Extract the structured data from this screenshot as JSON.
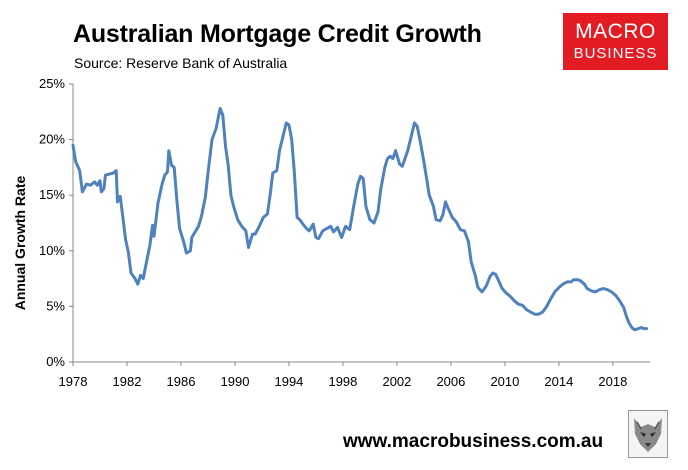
{
  "header": {
    "title": "Australian Mortgage Credit Growth",
    "subtitle": "Source: Reserve Bank of Australia"
  },
  "logo": {
    "line1": "MACRO",
    "line2": "BUSINESS",
    "color": "#e31b23"
  },
  "footer": {
    "website": "www.macrobusiness.com.au"
  },
  "chart_data": {
    "type": "line",
    "ylabel": "Annual Growth Rate",
    "xlabel": "",
    "xlim": [
      1978,
      2020.75
    ],
    "ylim": [
      0,
      25
    ],
    "grid": false,
    "legend": "none",
    "x_ticks": [
      "1978",
      "1982",
      "1986",
      "1990",
      "1994",
      "1998",
      "2002",
      "2006",
      "2010",
      "2014",
      "2018"
    ],
    "y_ticks": [
      "0%",
      "5%",
      "10%",
      "15%",
      "20%",
      "25%"
    ],
    "series": [
      {
        "color": "#4f81bd",
        "points": [
          [
            1978.0,
            19.5
          ],
          [
            1978.2,
            18.0
          ],
          [
            1978.5,
            17.2
          ],
          [
            1978.7,
            15.3
          ],
          [
            1979.0,
            16.0
          ],
          [
            1979.3,
            15.9
          ],
          [
            1979.6,
            16.2
          ],
          [
            1979.8,
            15.9
          ],
          [
            1980.0,
            16.3
          ],
          [
            1980.1,
            15.3
          ],
          [
            1980.3,
            15.6
          ],
          [
            1980.4,
            16.8
          ],
          [
            1980.7,
            16.9
          ],
          [
            1981.0,
            17.0
          ],
          [
            1981.2,
            17.2
          ],
          [
            1981.3,
            14.4
          ],
          [
            1981.5,
            14.9
          ],
          [
            1981.7,
            13.0
          ],
          [
            1981.9,
            11.0
          ],
          [
            1982.1,
            9.9
          ],
          [
            1982.3,
            8.0
          ],
          [
            1982.6,
            7.5
          ],
          [
            1982.8,
            7.0
          ],
          [
            1983.0,
            7.8
          ],
          [
            1983.2,
            7.5
          ],
          [
            1983.5,
            9.3
          ],
          [
            1983.7,
            10.5
          ],
          [
            1983.9,
            12.3
          ],
          [
            1984.0,
            11.3
          ],
          [
            1984.3,
            14.3
          ],
          [
            1984.6,
            16.0
          ],
          [
            1984.8,
            16.8
          ],
          [
            1985.0,
            17.1
          ],
          [
            1985.1,
            19.0
          ],
          [
            1985.3,
            17.7
          ],
          [
            1985.5,
            17.5
          ],
          [
            1985.7,
            14.5
          ],
          [
            1985.9,
            12.0
          ],
          [
            1986.2,
            10.8
          ],
          [
            1986.4,
            9.8
          ],
          [
            1986.7,
            10.0
          ],
          [
            1986.8,
            11.2
          ],
          [
            1987.1,
            11.8
          ],
          [
            1987.3,
            12.2
          ],
          [
            1987.5,
            13.0
          ],
          [
            1987.8,
            14.8
          ],
          [
            1988.0,
            17.0
          ],
          [
            1988.3,
            20.0
          ],
          [
            1988.6,
            21.0
          ],
          [
            1988.9,
            22.8
          ],
          [
            1989.1,
            22.2
          ],
          [
            1989.3,
            19.4
          ],
          [
            1989.5,
            17.7
          ],
          [
            1989.7,
            15.0
          ],
          [
            1989.9,
            14.0
          ],
          [
            1990.2,
            12.8
          ],
          [
            1990.5,
            12.2
          ],
          [
            1990.8,
            11.8
          ],
          [
            1991.0,
            10.3
          ],
          [
            1991.3,
            11.5
          ],
          [
            1991.5,
            11.5
          ],
          [
            1991.8,
            12.2
          ],
          [
            1992.1,
            13.0
          ],
          [
            1992.4,
            13.3
          ],
          [
            1992.6,
            15.0
          ],
          [
            1992.8,
            17.0
          ],
          [
            1993.1,
            17.2
          ],
          [
            1993.3,
            19.0
          ],
          [
            1993.5,
            20.0
          ],
          [
            1993.8,
            21.5
          ],
          [
            1994.0,
            21.3
          ],
          [
            1994.2,
            20.0
          ],
          [
            1994.4,
            17.0
          ],
          [
            1994.6,
            13.0
          ],
          [
            1994.8,
            12.8
          ],
          [
            1995.1,
            12.3
          ],
          [
            1995.3,
            12.0
          ],
          [
            1995.5,
            11.8
          ],
          [
            1995.8,
            12.4
          ],
          [
            1996.0,
            11.2
          ],
          [
            1996.2,
            11.1
          ],
          [
            1996.5,
            11.8
          ],
          [
            1996.8,
            12.0
          ],
          [
            1997.1,
            12.2
          ],
          [
            1997.3,
            11.7
          ],
          [
            1997.6,
            12.1
          ],
          [
            1997.9,
            11.2
          ],
          [
            1998.2,
            12.2
          ],
          [
            1998.5,
            11.9
          ],
          [
            1998.8,
            14.0
          ],
          [
            1999.1,
            16.0
          ],
          [
            1999.3,
            16.7
          ],
          [
            1999.5,
            16.5
          ],
          [
            1999.7,
            14.0
          ],
          [
            2000.0,
            12.8
          ],
          [
            2000.3,
            12.5
          ],
          [
            2000.6,
            13.5
          ],
          [
            2000.8,
            15.5
          ],
          [
            2001.1,
            17.5
          ],
          [
            2001.3,
            18.3
          ],
          [
            2001.5,
            18.5
          ],
          [
            2001.7,
            18.3
          ],
          [
            2001.9,
            19.0
          ],
          [
            2002.2,
            17.8
          ],
          [
            2002.4,
            17.6
          ],
          [
            2002.6,
            18.3
          ],
          [
            2002.8,
            19.0
          ],
          [
            2003.1,
            20.5
          ],
          [
            2003.3,
            21.5
          ],
          [
            2003.5,
            21.2
          ],
          [
            2003.7,
            20.0
          ],
          [
            2004.0,
            18.0
          ],
          [
            2004.2,
            16.5
          ],
          [
            2004.4,
            15.0
          ],
          [
            2004.7,
            14.0
          ],
          [
            2004.9,
            12.8
          ],
          [
            2005.2,
            12.7
          ],
          [
            2005.4,
            13.2
          ],
          [
            2005.6,
            14.4
          ],
          [
            2005.8,
            13.8
          ],
          [
            2006.1,
            13.0
          ],
          [
            2006.4,
            12.6
          ],
          [
            2006.7,
            11.9
          ],
          [
            2007.0,
            11.8
          ],
          [
            2007.3,
            10.8
          ],
          [
            2007.5,
            9.0
          ],
          [
            2007.8,
            7.8
          ],
          [
            2008.0,
            6.7
          ],
          [
            2008.3,
            6.3
          ],
          [
            2008.6,
            6.8
          ],
          [
            2008.9,
            7.7
          ],
          [
            2009.1,
            8.0
          ],
          [
            2009.3,
            7.9
          ],
          [
            2009.5,
            7.4
          ],
          [
            2009.8,
            6.6
          ],
          [
            2010.1,
            6.2
          ],
          [
            2010.4,
            5.9
          ],
          [
            2010.7,
            5.5
          ],
          [
            2011.0,
            5.2
          ],
          [
            2011.3,
            5.1
          ],
          [
            2011.6,
            4.7
          ],
          [
            2011.9,
            4.5
          ],
          [
            2012.2,
            4.3
          ],
          [
            2012.5,
            4.3
          ],
          [
            2012.8,
            4.5
          ],
          [
            2013.1,
            5.0
          ],
          [
            2013.4,
            5.7
          ],
          [
            2013.7,
            6.3
          ],
          [
            2014.0,
            6.7
          ],
          [
            2014.3,
            7.0
          ],
          [
            2014.6,
            7.2
          ],
          [
            2014.9,
            7.2
          ],
          [
            2015.1,
            7.4
          ],
          [
            2015.4,
            7.4
          ],
          [
            2015.6,
            7.3
          ],
          [
            2015.9,
            7.0
          ],
          [
            2016.1,
            6.6
          ],
          [
            2016.4,
            6.4
          ],
          [
            2016.7,
            6.3
          ],
          [
            2017.0,
            6.5
          ],
          [
            2017.3,
            6.6
          ],
          [
            2017.6,
            6.5
          ],
          [
            2017.9,
            6.3
          ],
          [
            2018.2,
            6.0
          ],
          [
            2018.5,
            5.5
          ],
          [
            2018.8,
            4.9
          ],
          [
            2019.0,
            4.1
          ],
          [
            2019.2,
            3.5
          ],
          [
            2019.4,
            3.1
          ],
          [
            2019.6,
            2.9
          ],
          [
            2019.9,
            3.0
          ],
          [
            2020.1,
            3.1
          ],
          [
            2020.3,
            3.0
          ],
          [
            2020.5,
            3.0
          ]
        ]
      }
    ]
  }
}
